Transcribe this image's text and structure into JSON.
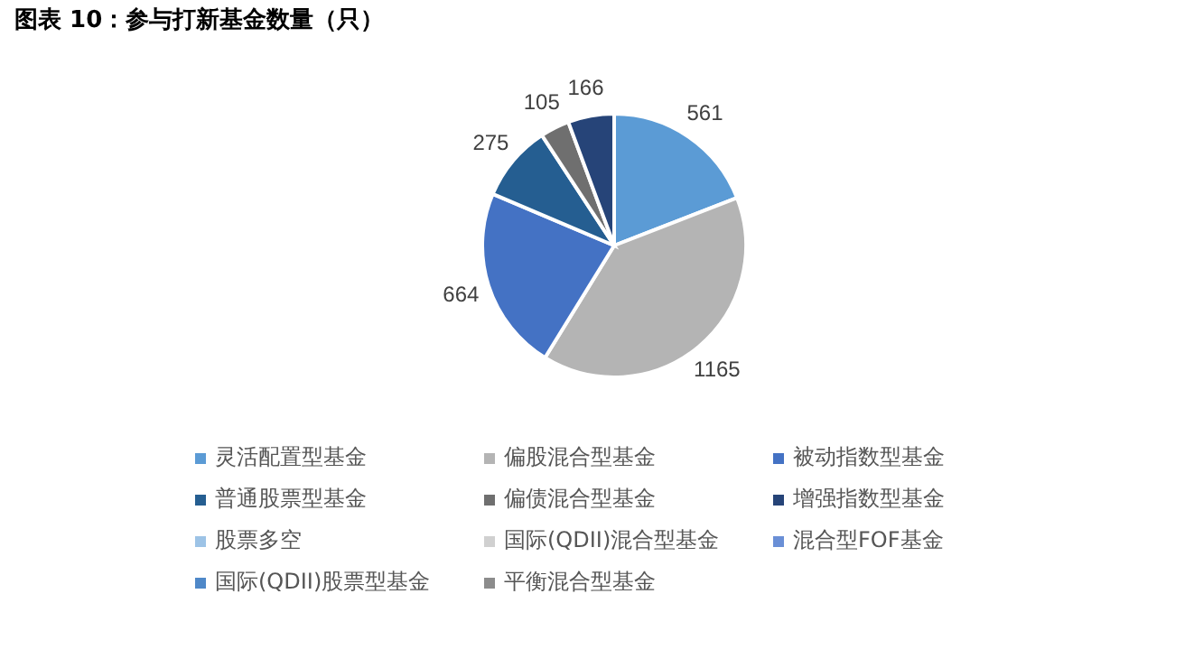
{
  "chart_data": {
    "type": "pie",
    "title": "图表 10：参与打新基金数量（只）",
    "categories": [
      "灵活配置型基金",
      "偏股混合型基金",
      "被动指数型基金",
      "普通股票型基金",
      "偏债混合型基金",
      "增强指数型基金",
      "股票多空",
      "国际(QDII)混合型基金",
      "混合型FOF基金",
      "国际(QDII)股票型基金",
      "平衡混合型基金"
    ],
    "values": [
      561,
      1165,
      664,
      275,
      105,
      166,
      null,
      null,
      null,
      null,
      null
    ],
    "colors": [
      "#5b9bd5",
      "#b4b4b4",
      "#4472c4",
      "#255e91",
      "#6f6f6f",
      "#264478",
      "#9dc3e6",
      "#d0d0d0",
      "#6a8fd6",
      "#4f88c8",
      "#8c8c8c"
    ],
    "data_labels": true,
    "legend": "bottom"
  }
}
